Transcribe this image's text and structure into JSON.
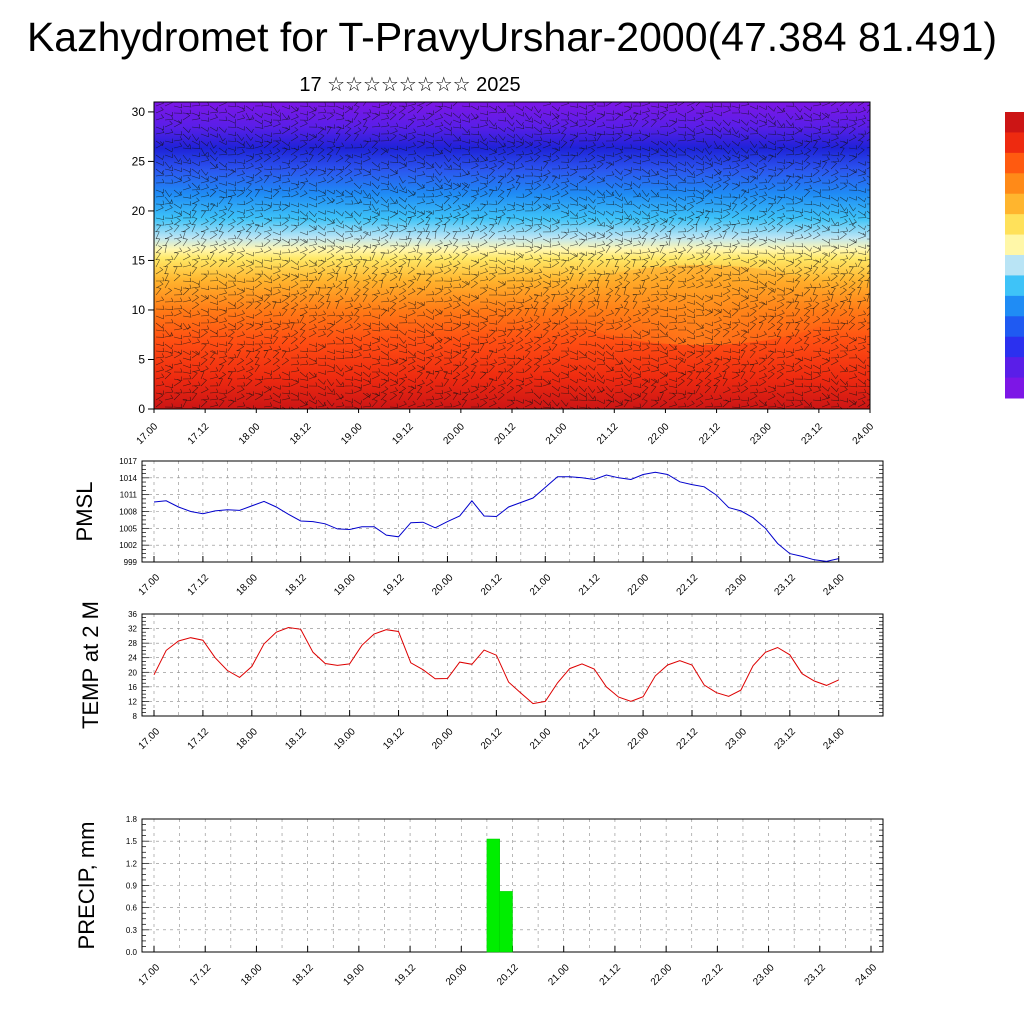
{
  "title": "Kazhydromet for T-PravyUrshar-2000(47.384 81.491)",
  "subtitle": "17 ☆☆☆☆☆☆☆☆ 2025",
  "time_ticks": [
    "17.00",
    "17.12",
    "18.00",
    "18.12",
    "19.00",
    "19.12",
    "20.00",
    "20.12",
    "21.00",
    "21.12",
    "22.00",
    "22.12",
    "23.00",
    "23.12",
    "24.00"
  ],
  "chart_data": [
    {
      "type": "heatmap",
      "description_key": "cross-section",
      "x_ticks": [
        "17.00",
        "17.12",
        "18.00",
        "18.12",
        "19.00",
        "19.12",
        "20.00",
        "20.12",
        "21.00",
        "21.12",
        "22.00",
        "22.12",
        "23.00",
        "23.12",
        "24.00"
      ],
      "y_ticks": [
        0,
        5,
        10,
        15,
        20,
        25,
        30
      ],
      "ylim": [
        0,
        31
      ],
      "colorbar": [
        "#7d16e6",
        "#5a1ee8",
        "#2b30ef",
        "#1f5af2",
        "#1f8cf5",
        "#3ec3f8",
        "#b9e4f5",
        "#fff7a8",
        "#ffe15a",
        "#ffb52e",
        "#ff8a18",
        "#ff5a10",
        "#ee2a10",
        "#cc1515"
      ]
    },
    {
      "type": "line",
      "ylabel": "PMSL",
      "y_ticks": [
        999,
        1002,
        1005,
        1008,
        1011,
        1014,
        1017
      ],
      "ylim": [
        999,
        1017
      ],
      "x_ticks": [
        "17.00",
        "17.12",
        "18.00",
        "18.12",
        "19.00",
        "19.12",
        "20.00",
        "20.12",
        "21.00",
        "21.12",
        "22.00",
        "22.12",
        "23.00",
        "23.12",
        "24.00"
      ],
      "color": "#0000cc",
      "values": [
        1009.7,
        1009.9,
        1008.8,
        1008.0,
        1007.6,
        1008.1,
        1008.3,
        1008.2,
        1009.0,
        1009.8,
        1008.8,
        1007.5,
        1006.3,
        1006.2,
        1005.8,
        1004.9,
        1004.8,
        1005.3,
        1005.3,
        1003.8,
        1003.5,
        1006.0,
        1006.1,
        1005.1,
        1006.2,
        1007.2,
        1009.9,
        1007.2,
        1007.1,
        1008.8,
        1009.6,
        1010.4,
        1012.3,
        1014.2,
        1014.2,
        1014.0,
        1013.7,
        1014.5,
        1014.0,
        1013.7,
        1014.6,
        1015.0,
        1014.6,
        1013.3,
        1012.8,
        1012.4,
        1010.9,
        1008.7,
        1008.1,
        1006.9,
        1005.0,
        1002.3,
        1000.5,
        1000.0,
        999.4,
        999.1,
        999.6
      ]
    },
    {
      "type": "line",
      "ylabel": "TEMP at 2 M",
      "y_ticks": [
        8,
        12,
        16,
        20,
        24,
        28,
        32,
        36
      ],
      "ylim": [
        8,
        36
      ],
      "x_ticks": [
        "17.00",
        "17.12",
        "18.00",
        "18.12",
        "19.00",
        "19.12",
        "20.00",
        "20.12",
        "21.00",
        "21.12",
        "22.00",
        "22.12",
        "23.00",
        "23.12",
        "24.00"
      ],
      "color": "#dd0000",
      "values": [
        19.3,
        26.0,
        28.6,
        29.5,
        28.8,
        24.0,
        20.5,
        18.6,
        21.6,
        27.8,
        31.0,
        32.3,
        31.8,
        25.5,
        22.4,
        21.9,
        22.3,
        27.4,
        30.5,
        31.7,
        31.2,
        22.6,
        20.7,
        18.2,
        18.3,
        22.8,
        22.2,
        26.1,
        24.7,
        17.3,
        14.3,
        11.4,
        12.0,
        17.1,
        21.0,
        22.3,
        20.9,
        16.0,
        13.2,
        12.0,
        13.3,
        19.0,
        22.0,
        23.2,
        22.0,
        16.5,
        14.4,
        13.4,
        15.1,
        21.8,
        25.5,
        26.8,
        24.8,
        19.6,
        17.6,
        16.4,
        17.9
      ]
    },
    {
      "type": "bar",
      "ylabel": "PRECIP, mm",
      "y_ticks": [
        "0.0",
        "0.3",
        "0.6",
        "0.9",
        "1.2",
        "1.5",
        "1.8"
      ],
      "ylim": [
        0,
        1.8
      ],
      "x_ticks": [
        "17.00",
        "17.12",
        "18.00",
        "18.12",
        "19.00",
        "19.12",
        "20.00",
        "20.12",
        "21.00",
        "21.12",
        "22.00",
        "22.12",
        "23.00",
        "23.12",
        "24.00"
      ],
      "color": "#00ee00",
      "bars": [
        {
          "time_hours": 78,
          "value": 1.53
        },
        {
          "time_hours": 81,
          "value": 0.82
        }
      ]
    }
  ]
}
